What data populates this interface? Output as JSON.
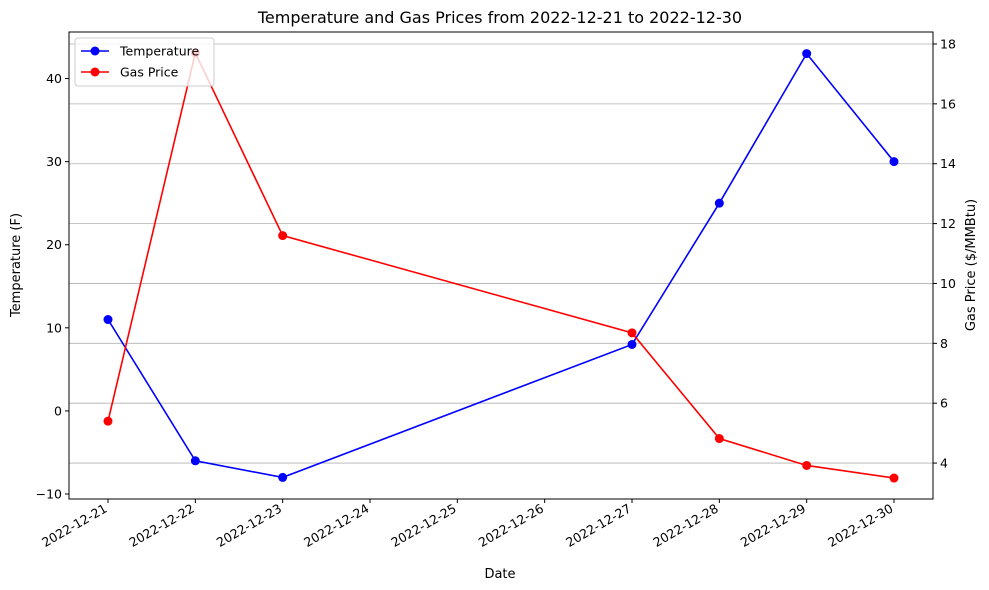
{
  "chart_data": {
    "type": "line",
    "title": "Temperature and Gas Prices from 2022-12-21 to 2022-12-30",
    "xlabel": "Date",
    "ylabel_left": "Temperature (F)",
    "ylabel_right": "Gas Price ($/MMBtu)",
    "x_ticks": [
      "2022-12-21",
      "2022-12-22",
      "2022-12-23",
      "2022-12-24",
      "2022-12-25",
      "2022-12-26",
      "2022-12-27",
      "2022-12-28",
      "2022-12-29",
      "2022-12-30"
    ],
    "ylim_left": [
      -10.6,
      45.6
    ],
    "yticks_left": [
      -10,
      0,
      10,
      20,
      30,
      40
    ],
    "ylim_right": [
      2.8,
      18.4
    ],
    "yticks_right": [
      4,
      6,
      8,
      10,
      12,
      14,
      16,
      18
    ],
    "grid": "right-axis horizontal",
    "legend_position": "top-left",
    "series": [
      {
        "name": "Temperature",
        "axis": "left",
        "color": "#0000ff",
        "marker": "circle",
        "x": [
          "2022-12-21",
          "2022-12-22",
          "2022-12-23",
          "2022-12-27",
          "2022-12-28",
          "2022-12-29",
          "2022-12-30"
        ],
        "values": [
          11,
          -6,
          -8,
          8,
          25,
          43,
          30
        ]
      },
      {
        "name": "Gas Price",
        "axis": "right",
        "color": "#ff0000",
        "marker": "circle",
        "x": [
          "2022-12-21",
          "2022-12-22",
          "2022-12-23",
          "2022-12-27",
          "2022-12-28",
          "2022-12-29",
          "2022-12-30"
        ],
        "values": [
          5.4,
          17.7,
          11.6,
          8.35,
          4.82,
          3.92,
          3.5
        ]
      }
    ]
  }
}
